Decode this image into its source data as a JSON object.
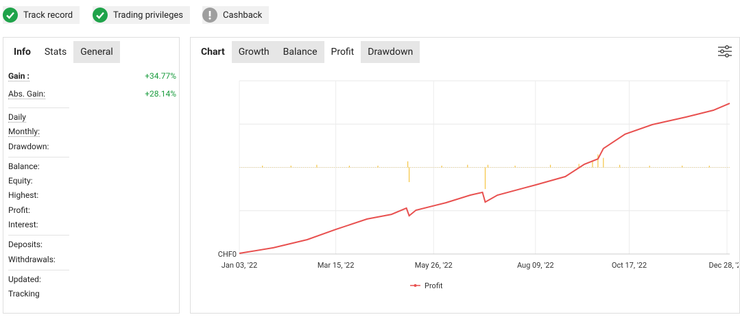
{
  "badges": [
    "Track record",
    "Trading privileges",
    "Cashback"
  ],
  "info_panel": {
    "tabs": [
      "Info",
      "Stats",
      "General"
    ],
    "groups": [
      [
        {
          "label": "Gain :",
          "value": "+34.77%"
        },
        {
          "label": "Abs. Gain:",
          "value": "+28.14%"
        }
      ],
      [
        {
          "label": "Daily"
        },
        {
          "label": "Monthly:"
        },
        {
          "label": "Drawdown:"
        }
      ],
      [
        {
          "label": "Balance:"
        },
        {
          "label": "Equity:"
        },
        {
          "label": "Highest:"
        },
        {
          "label": "Profit:"
        },
        {
          "label": "Interest:"
        }
      ],
      [
        {
          "label": "Deposits:"
        },
        {
          "label": "Withdrawals:"
        }
      ],
      [
        {
          "label": "Updated:"
        },
        {
          "label": "Tracking"
        }
      ]
    ]
  },
  "chart_panel": {
    "tabs": [
      "Chart",
      "Growth",
      "Balance",
      "Profit",
      "Drawdown"
    ],
    "active_tab": 3
  },
  "chart_data": {
    "type": "line",
    "xlim": [
      "2022-01-03",
      "2022-12-30"
    ],
    "xticks": [
      {
        "value": "2022-01-03",
        "label": "Jan 03, '22"
      },
      {
        "value": "2022-03-15",
        "label": "Mar 15, '22"
      },
      {
        "value": "2022-05-26",
        "label": "May 26, '22"
      },
      {
        "value": "2022-08-09",
        "label": "Aug 09, '22"
      },
      {
        "value": "2022-10-17",
        "label": "Oct 17, '22"
      },
      {
        "value": "2022-12-28",
        "label": "Dec 28, '22"
      }
    ],
    "ylim": [
      0,
      100
    ],
    "yticks": [
      {
        "value": 0,
        "label": "CHF0"
      }
    ],
    "y2lim": [
      -100,
      100
    ],
    "grid": true,
    "series": [
      {
        "name": "Profit",
        "color": "#e8504f",
        "x": [
          "2022-01-03",
          "2022-01-28",
          "2022-02-22",
          "2022-03-15",
          "2022-04-07",
          "2022-04-25",
          "2022-05-06",
          "2022-05-08",
          "2022-05-13",
          "2022-06-04",
          "2022-06-22",
          "2022-07-01",
          "2022-07-03",
          "2022-07-12",
          "2022-08-09",
          "2022-08-31",
          "2022-09-14",
          "2022-09-24",
          "2022-09-28",
          "2022-10-14",
          "2022-11-03",
          "2022-11-28",
          "2022-12-18",
          "2022-12-30"
        ],
        "values": [
          0.4,
          3.6,
          8.3,
          14.2,
          20.2,
          22.9,
          26.5,
          22.1,
          25.3,
          29.6,
          34.0,
          35.6,
          30.0,
          34.0,
          39.9,
          44.7,
          51.8,
          54.9,
          60.9,
          69.2,
          74.7,
          79.1,
          83.0,
          87.0
        ]
      },
      {
        "type": "bar",
        "axis": "y2",
        "color": "#f5c542",
        "x": [
          "2022-01-20",
          "2022-02-10",
          "2022-03-01",
          "2022-03-25",
          "2022-04-15",
          "2022-05-07",
          "2022-05-08",
          "2022-06-01",
          "2022-06-20",
          "2022-07-03",
          "2022-07-05",
          "2022-07-25",
          "2022-08-20",
          "2022-09-10",
          "2022-09-20",
          "2022-09-24",
          "2022-09-28",
          "2022-10-10",
          "2022-11-01",
          "2022-11-25",
          "2022-12-15"
        ],
        "values": [
          2,
          2,
          3,
          2,
          2,
          7,
          -17,
          2,
          3,
          -25,
          3,
          2,
          3,
          4,
          7,
          15,
          11,
          3,
          2,
          2,
          2
        ]
      }
    ]
  }
}
